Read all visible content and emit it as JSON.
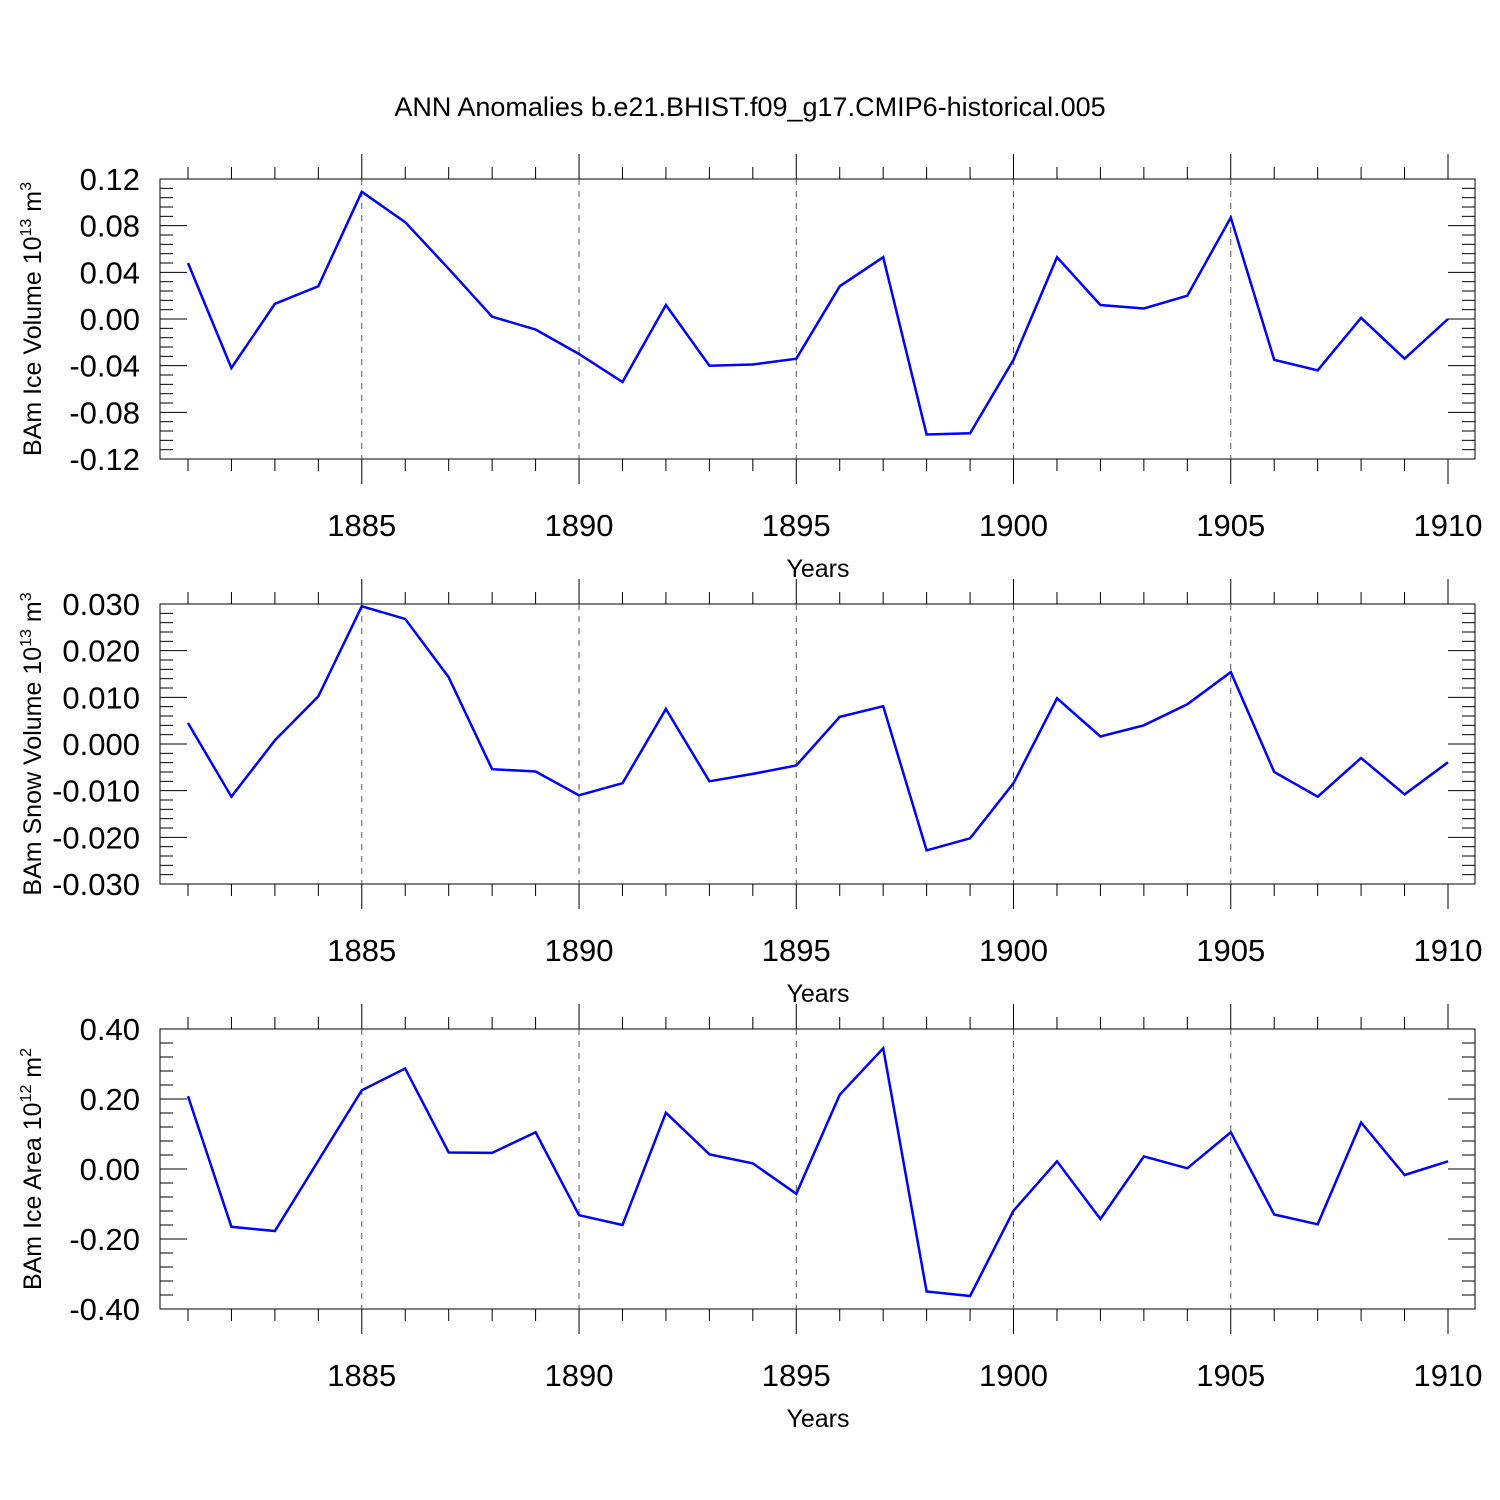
{
  "title": "ANN Anomalies b.e21.BHIST.f09_g17.CMIP6-historical.005",
  "colors": {
    "line": "#0000ff",
    "axis": "#000000",
    "grid": "#555555",
    "background": "#ffffff"
  },
  "chart_data": [
    {
      "type": "line",
      "ylabel": {
        "text": "BAm Ice Volume 10",
        "sup": "13",
        "unit": " m",
        "unit_sup": "3"
      },
      "xlabel": "Years",
      "xlim": [
        1881,
        1910
      ],
      "ylim": [
        -0.12,
        0.12
      ],
      "xticks": [
        1885,
        1890,
        1895,
        1900,
        1905,
        1910
      ],
      "yticks": [
        "-0.12",
        "-0.08",
        "-0.04",
        "0.00",
        "0.04",
        "0.08",
        "0.12"
      ],
      "grid": "vertical dashed at major x ticks",
      "x": [
        1881,
        1882,
        1883,
        1884,
        1885,
        1886,
        1887,
        1888,
        1889,
        1890,
        1891,
        1892,
        1893,
        1894,
        1895,
        1896,
        1897,
        1898,
        1899,
        1900,
        1901,
        1902,
        1903,
        1904,
        1905,
        1906,
        1907,
        1908,
        1909,
        1910
      ],
      "values": [
        0.048,
        -0.042,
        0.013,
        0.028,
        0.109,
        0.083,
        0.043,
        0.002,
        -0.009,
        -0.03,
        -0.054,
        0.012,
        -0.04,
        -0.039,
        -0.034,
        0.028,
        0.053,
        -0.099,
        -0.098,
        -0.035,
        0.053,
        0.012,
        0.009,
        0.02,
        0.087,
        -0.035,
        -0.044,
        0.001,
        -0.034,
        0.0
      ]
    },
    {
      "type": "line",
      "ylabel": {
        "text": "BAm Snow Volume 10",
        "sup": "13",
        "unit": " m",
        "unit_sup": "3"
      },
      "xlabel": "Years",
      "xlim": [
        1881,
        1910
      ],
      "ylim": [
        -0.03,
        0.03
      ],
      "xticks": [
        1885,
        1890,
        1895,
        1900,
        1905,
        1910
      ],
      "yticks": [
        "-0.030",
        "-0.020",
        "-0.010",
        "0.000",
        "0.010",
        "0.020",
        "0.030"
      ],
      "grid": "vertical dashed at major x ticks",
      "x": [
        1881,
        1882,
        1883,
        1884,
        1885,
        1886,
        1887,
        1888,
        1889,
        1890,
        1891,
        1892,
        1893,
        1894,
        1895,
        1896,
        1897,
        1898,
        1899,
        1900,
        1901,
        1902,
        1903,
        1904,
        1905,
        1906,
        1907,
        1908,
        1909,
        1910
      ],
      "values": [
        0.0045,
        -0.0113,
        0.0008,
        0.0102,
        0.0295,
        0.0268,
        0.0143,
        -0.0054,
        -0.0059,
        -0.011,
        -0.0084,
        0.0075,
        -0.008,
        -0.0064,
        -0.0046,
        0.0058,
        0.0081,
        -0.0228,
        -0.0202,
        -0.0084,
        0.0098,
        0.0016,
        0.004,
        0.0085,
        0.0154,
        -0.006,
        -0.0113,
        -0.003,
        -0.0108,
        -0.0039
      ]
    },
    {
      "type": "line",
      "ylabel": {
        "text": "BAm Ice Area 10",
        "sup": "12",
        "unit": " m",
        "unit_sup": "2"
      },
      "xlabel": "Years",
      "xlim": [
        1881,
        1910
      ],
      "ylim": [
        -0.4,
        0.4
      ],
      "xticks": [
        1885,
        1890,
        1895,
        1900,
        1905,
        1910
      ],
      "yticks": [
        "-0.40",
        "-0.20",
        "0.00",
        "0.20",
        "0.40"
      ],
      "grid": "vertical dashed at major x ticks",
      "x": [
        1881,
        1882,
        1883,
        1884,
        1885,
        1886,
        1887,
        1888,
        1889,
        1890,
        1891,
        1892,
        1893,
        1894,
        1895,
        1896,
        1897,
        1898,
        1899,
        1900,
        1901,
        1902,
        1903,
        1904,
        1905,
        1906,
        1907,
        1908,
        1909,
        1910
      ],
      "values": [
        0.208,
        -0.165,
        -0.177,
        0.024,
        0.225,
        0.287,
        0.047,
        0.046,
        0.105,
        -0.132,
        -0.16,
        0.161,
        0.042,
        0.016,
        -0.071,
        0.212,
        0.345,
        -0.35,
        -0.363,
        -0.119,
        0.022,
        -0.143,
        0.036,
        0.002,
        0.105,
        -0.13,
        -0.158,
        0.133,
        -0.017,
        0.022
      ]
    }
  ]
}
